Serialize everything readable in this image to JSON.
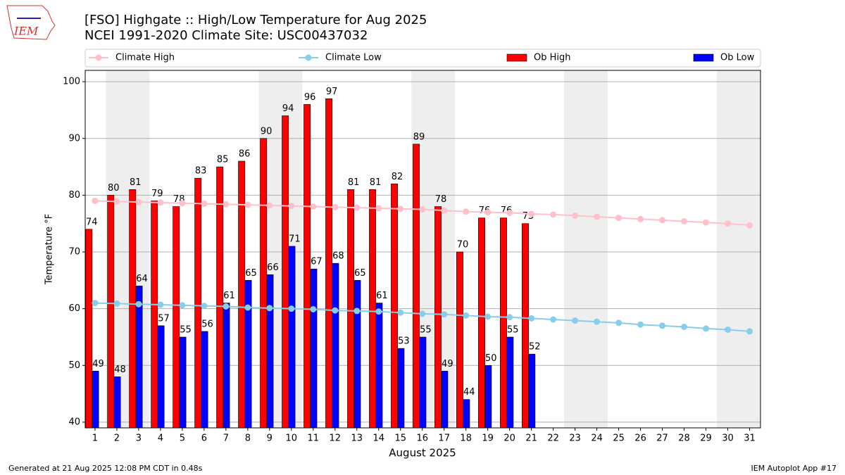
{
  "chart_data": {
    "type": "bar_line",
    "title": "[FSO] Highgate :: High/Low Temperature for Aug 2025",
    "subtitle": "NCEI 1991-2020 Climate Site: USC00437032",
    "xlabel": "August 2025",
    "ylabel": "Temperature °F",
    "logo_text": "IEM",
    "footer_left": "Generated at 21 Aug 2025 12:08 PM CDT in 0.48s",
    "footer_right": "IEM Autoplot App #17",
    "x": [
      1,
      2,
      3,
      4,
      5,
      6,
      7,
      8,
      9,
      10,
      11,
      12,
      13,
      14,
      15,
      16,
      17,
      18,
      19,
      20,
      21,
      22,
      23,
      24,
      25,
      26,
      27,
      28,
      29,
      30,
      31
    ],
    "xlim": [
      0.55,
      31.5
    ],
    "xticks": [
      1,
      2,
      3,
      4,
      5,
      6,
      7,
      8,
      9,
      10,
      11,
      12,
      13,
      14,
      15,
      16,
      17,
      18,
      19,
      20,
      21,
      22,
      23,
      24,
      25,
      26,
      27,
      28,
      29,
      30,
      31
    ],
    "ylim": [
      39,
      102
    ],
    "yticks": [
      40,
      50,
      60,
      70,
      80,
      90,
      100
    ],
    "grid": true,
    "shaded_days": [
      2,
      3,
      9,
      10,
      16,
      17,
      23,
      24,
      30,
      31
    ],
    "series": [
      {
        "name": "Climate High",
        "color": "#ffc0cb",
        "kind": "line",
        "values": [
          79.0,
          78.9,
          78.8,
          78.7,
          78.6,
          78.5,
          78.4,
          78.3,
          78.2,
          78.1,
          78.0,
          77.9,
          77.8,
          77.7,
          77.6,
          77.5,
          77.3,
          77.1,
          77.0,
          76.9,
          76.7,
          76.6,
          76.4,
          76.2,
          76.0,
          75.8,
          75.6,
          75.4,
          75.2,
          75.0,
          74.7
        ]
      },
      {
        "name": "Climate Low",
        "color": "#87ceeb",
        "kind": "line",
        "values": [
          61.0,
          60.9,
          60.8,
          60.7,
          60.6,
          60.5,
          60.4,
          60.2,
          60.1,
          60.0,
          59.9,
          59.7,
          59.6,
          59.5,
          59.3,
          59.1,
          59.0,
          58.8,
          58.6,
          58.5,
          58.3,
          58.1,
          57.9,
          57.7,
          57.5,
          57.2,
          57.0,
          56.8,
          56.5,
          56.3,
          56.0
        ]
      },
      {
        "name": "Ob High",
        "color": "#ff0000",
        "kind": "bar",
        "values": [
          74,
          80,
          81,
          79,
          78,
          83,
          85,
          86,
          90,
          94,
          96,
          97,
          81,
          81,
          82,
          89,
          78,
          70,
          76,
          76,
          75,
          null,
          null,
          null,
          null,
          null,
          null,
          null,
          null,
          null,
          null
        ]
      },
      {
        "name": "Ob Low",
        "color": "#0000ff",
        "kind": "bar",
        "values": [
          49,
          48,
          64,
          57,
          55,
          56,
          61,
          65,
          66,
          71,
          67,
          68,
          65,
          61,
          53,
          55,
          49,
          44,
          50,
          55,
          52,
          null,
          null,
          null,
          null,
          null,
          null,
          null,
          null,
          null,
          null
        ]
      }
    ]
  }
}
